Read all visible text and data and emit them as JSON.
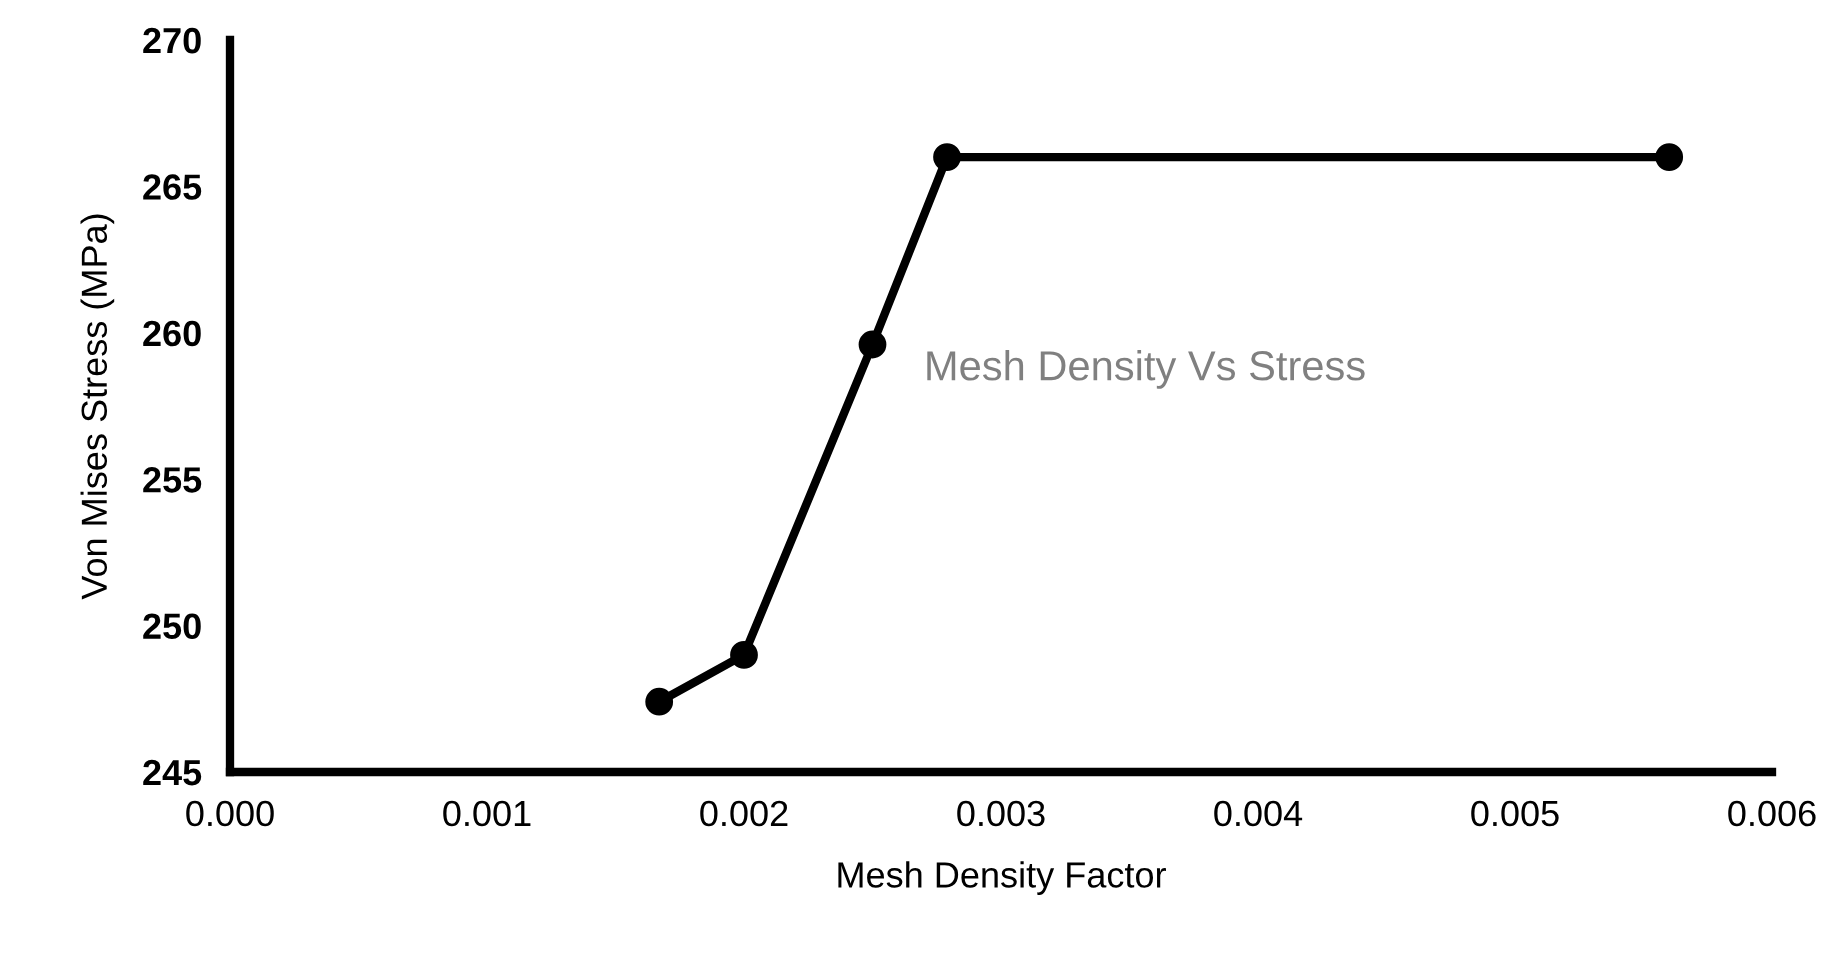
{
  "chart_data": {
    "type": "line",
    "title": "Mesh Density Vs Stress",
    "xlabel": "Mesh Density Factor",
    "ylabel": "Von Mises Stress (MPa)",
    "x": [
      0.00167,
      0.002,
      0.0025,
      0.00279,
      0.0056
    ],
    "series": [
      {
        "color": "#000000",
        "values": [
          247.4,
          249.0,
          259.6,
          266.0,
          266.0
        ]
      }
    ],
    "xlim": [
      0,
      0.006
    ],
    "xticks": [
      {
        "value": 0,
        "label": "0.000"
      },
      {
        "value": 0.001,
        "label": "0.001"
      },
      {
        "value": 0.002,
        "label": "0.002"
      },
      {
        "value": 0.003,
        "label": "0.003"
      },
      {
        "value": 0.004,
        "label": "0.004"
      },
      {
        "value": 0.005,
        "label": "0.005"
      },
      {
        "value": 0.006,
        "label": "0.006"
      }
    ],
    "ylim": [
      245,
      270
    ],
    "yticks": [
      245,
      250,
      255,
      260,
      265,
      270
    ],
    "grid": false,
    "marker": "circle",
    "line_style": "solid"
  }
}
